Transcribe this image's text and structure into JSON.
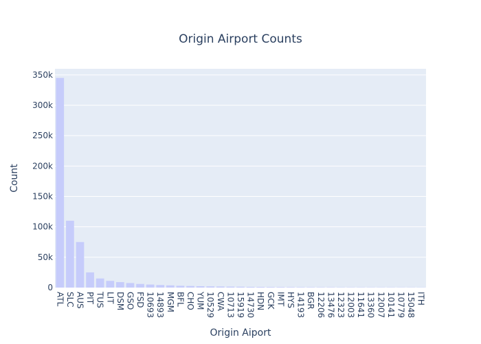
{
  "chart_data": {
    "type": "bar",
    "title": "Origin Airport Counts",
    "xlabel": "Origin Aiport",
    "ylabel": "Count",
    "ylim": [
      0,
      360000
    ],
    "yticks": [
      0,
      50000,
      100000,
      150000,
      200000,
      250000,
      300000,
      350000
    ],
    "ytick_labels": [
      "0",
      "50k",
      "100k",
      "150k",
      "200k",
      "250k",
      "300k",
      "350k"
    ],
    "grid": true,
    "bar_color": "#c6ccfb",
    "plot_bg": "#e5ecf6",
    "categories": [
      "ATL",
      "SLC",
      "AUS",
      "PIT",
      "TUS",
      "LIT",
      "DSM",
      "GSO",
      "FSD",
      "10693",
      "14893",
      "MGM",
      "BFL",
      "CHO",
      "YUM",
      "10529",
      "CWA",
      "10713",
      "15919",
      "14730",
      "HDN",
      "GCK",
      "IMT",
      "HYS",
      "14193",
      "BGR",
      "12206",
      "13476",
      "12323",
      "12003",
      "11641",
      "13360",
      "12007",
      "10141",
      "10779",
      "15048",
      "ITH"
    ],
    "values": [
      345000,
      110000,
      75000,
      25000,
      15000,
      11000,
      9000,
      7500,
      6000,
      5000,
      4200,
      3600,
      3000,
      2600,
      2300,
      2000,
      1800,
      1600,
      1400,
      1200,
      1100,
      1000,
      900,
      800,
      720,
      650,
      600,
      560,
      520,
      480,
      450,
      420,
      400,
      380,
      360,
      340,
      320
    ],
    "series": [
      {
        "values": [
          345000,
          110000,
          75000,
          25000,
          15000,
          11000,
          9000,
          7500,
          6000,
          5000,
          4200,
          3600,
          3000,
          2600,
          2300,
          2000,
          1800,
          1600,
          1400,
          1200,
          1100,
          1000,
          900,
          800,
          720,
          650,
          600,
          560,
          520,
          480,
          450,
          420,
          400,
          380,
          360,
          340,
          320
        ]
      }
    ]
  }
}
